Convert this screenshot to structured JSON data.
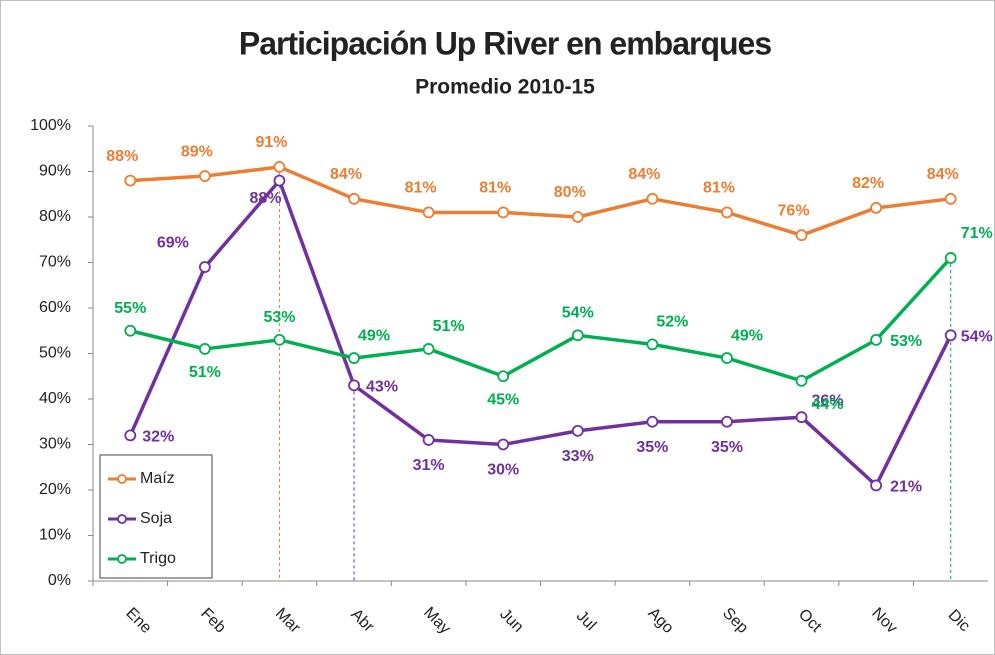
{
  "chart_data": {
    "type": "line",
    "title": "Participación Up River en embarques",
    "subtitle": "Promedio 2010-15",
    "categories": [
      "Ene",
      "Feb",
      "Mar",
      "Abr",
      "May",
      "Jun",
      "Jul",
      "Ago",
      "Sep",
      "Oct",
      "Nov",
      "Dic"
    ],
    "series": [
      {
        "name": "Maíz",
        "color": "#ed7d31",
        "values": [
          88,
          89,
          91,
          84,
          81,
          81,
          80,
          84,
          81,
          76,
          82,
          84
        ],
        "value_labels": [
          "88%",
          "89%",
          "91%",
          "84%",
          "81%",
          "81%",
          "80%",
          "84%",
          "81%",
          "76%",
          "82%",
          "84%"
        ]
      },
      {
        "name": "Soja",
        "color": "#7030a0",
        "values": [
          32,
          69,
          88,
          43,
          31,
          30,
          33,
          35,
          35,
          36,
          21,
          54
        ],
        "value_labels": [
          "32%",
          "69%",
          "88%",
          "43%",
          "31%",
          "30%",
          "33%",
          "35%",
          "35%",
          "36%",
          "21%",
          "54%"
        ]
      },
      {
        "name": "Trigo",
        "color": "#00b050",
        "values": [
          55,
          51,
          53,
          49,
          51,
          45,
          54,
          52,
          49,
          44,
          53,
          71
        ],
        "value_labels": [
          "55%",
          "51%",
          "53%",
          "49%",
          "51%",
          "45%",
          "54%",
          "52%",
          "49%",
          "44%",
          "53%",
          "71%"
        ]
      }
    ],
    "ylim": [
      0,
      100
    ],
    "yticks": [
      {
        "value": 0,
        "label": "0%"
      },
      {
        "value": 10,
        "label": "10%"
      },
      {
        "value": 20,
        "label": "20%"
      },
      {
        "value": 30,
        "label": "30%"
      },
      {
        "value": 40,
        "label": "40%"
      },
      {
        "value": 50,
        "label": "50%"
      },
      {
        "value": 60,
        "label": "60%"
      },
      {
        "value": 70,
        "label": "70%"
      },
      {
        "value": 80,
        "label": "80%"
      },
      {
        "value": 90,
        "label": "90%"
      },
      {
        "value": 100,
        "label": "100%"
      }
    ],
    "legend": "bottom-left"
  }
}
